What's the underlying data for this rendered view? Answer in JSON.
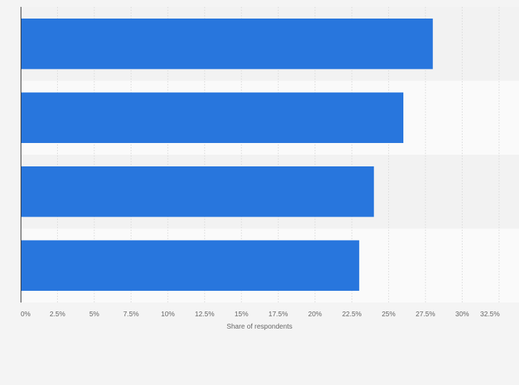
{
  "chart_data": {
    "type": "bar",
    "orientation": "horizontal",
    "categories": [
      "",
      "",
      "",
      ""
    ],
    "values": [
      28,
      26,
      24,
      23
    ],
    "xlabel": "Share of respondents",
    "ylabel": "",
    "xlim": [
      0,
      32.5
    ],
    "ticks": [
      0,
      2.5,
      5,
      7.5,
      10,
      12.5,
      15,
      17.5,
      20,
      22.5,
      25,
      27.5,
      30,
      32.5
    ],
    "tick_labels": [
      "0%",
      "2.5%",
      "5%",
      "7.5%",
      "10%",
      "12.5%",
      "15%",
      "17.5%",
      "20%",
      "22.5%",
      "25%",
      "27.5%",
      "30%",
      "32.5%"
    ],
    "grid": true,
    "colors": {
      "bar": "#2876dd",
      "band_dark": "#f2f2f2",
      "band_light": "#fafafa",
      "grid": "#dcdcdc",
      "axis": "#333333",
      "tick_text": "#666666"
    }
  }
}
